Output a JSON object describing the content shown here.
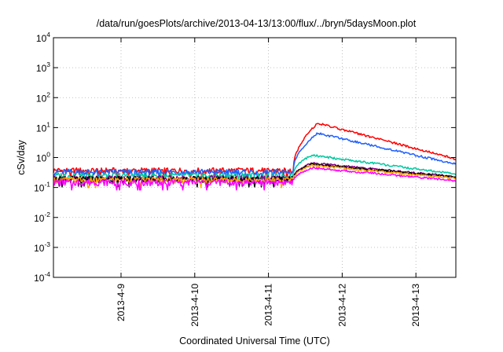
{
  "chart_data": {
    "type": "line",
    "title": "/data/run/goesPlots/archive/2013-04-13/13:00/flux/../bryn/5daysMoon.plot",
    "xlabel": "Coordinated Universal Time (UTC)",
    "ylabel": "cSv/day",
    "y_scale": "log",
    "ylim": [
      0.0001,
      10000
    ],
    "y_ticks": [
      {
        "base": "10",
        "exp": "-4",
        "value": 0.0001
      },
      {
        "base": "10",
        "exp": "-3",
        "value": 0.001
      },
      {
        "base": "10",
        "exp": "-2",
        "value": 0.01
      },
      {
        "base": "10",
        "exp": "-1",
        "value": 0.1
      },
      {
        "base": "10",
        "exp": "0",
        "value": 1
      },
      {
        "base": "10",
        "exp": "1",
        "value": 10
      },
      {
        "base": "10",
        "exp": "2",
        "value": 100
      },
      {
        "base": "10",
        "exp": "3",
        "value": 1000
      },
      {
        "base": "10",
        "exp": "4",
        "value": 10000
      }
    ],
    "xlim": [
      "2013-04-08T02:00",
      "2013-04-13T13:00"
    ],
    "x_ticks": [
      "2013-4-9",
      "2013-4-10",
      "2013-4-11",
      "2013-4-12",
      "2013-4-13"
    ],
    "grid": true,
    "legend": "none",
    "onset": "2013-04-11T08:00",
    "series": [
      {
        "color": "#ff0000",
        "quiet_level": 0.37,
        "peak": 14,
        "peak_time": "2013-04-11T16:00",
        "end_value": 0.9
      },
      {
        "color": "#1f5fff",
        "quiet_level": 0.33,
        "peak": 6.5,
        "peak_time": "2013-04-11T16:00",
        "end_value": 0.6
      },
      {
        "color": "#00c8a0",
        "quiet_level": 0.25,
        "peak": 1.2,
        "peak_time": "2013-04-11T14:00",
        "end_value": 0.28
      },
      {
        "color": "#800080",
        "quiet_level": 0.2,
        "peak": 0.65,
        "peak_time": "2013-04-11T14:00",
        "end_value": 0.23
      },
      {
        "color": "#000000",
        "quiet_level": 0.19,
        "peak": 0.6,
        "peak_time": "2013-04-11T14:00",
        "end_value": 0.22
      },
      {
        "color": "#ffa500",
        "quiet_level": 0.18,
        "peak": 0.55,
        "peak_time": "2013-04-11T14:00",
        "end_value": 0.2
      },
      {
        "color": "#ff00ff",
        "quiet_level": 0.15,
        "peak": 0.45,
        "peak_time": "2013-04-11T14:00",
        "end_value": 0.17
      }
    ]
  }
}
